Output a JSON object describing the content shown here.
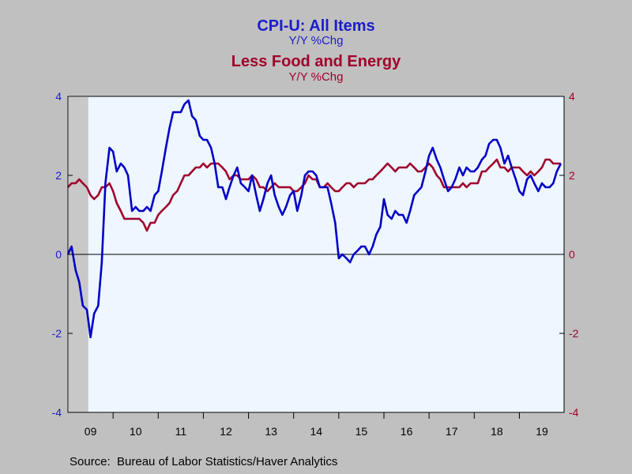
{
  "chart_data": {
    "type": "line",
    "title_1": "CPI-U: All Items",
    "subtitle_1": "Y/Y %Chg",
    "title_2": "Less Food and Energy",
    "subtitle_2": "Y/Y %Chg",
    "x_tick_labels": [
      "09",
      "10",
      "11",
      "12",
      "13",
      "14",
      "15",
      "16",
      "17",
      "18",
      "19"
    ],
    "x_range": [
      2009.0,
      2019.99
    ],
    "ylim_left": [
      -4,
      4
    ],
    "ylim_right": [
      -4,
      4
    ],
    "y_ticks_left": [
      "4",
      "2",
      "0",
      "-2",
      "-4"
    ],
    "y_ticks_right": [
      "4",
      "2",
      "0",
      "-2",
      "-4"
    ],
    "recession_shading": [
      2009.0,
      2009.45
    ],
    "colors": {
      "all_items": "#0000c8",
      "core": "#a0002a",
      "axis_left_text": "#1c1ccc",
      "axis_right_text": "#a0002a",
      "plot_bg": "#eef6ff",
      "recession": "#c8c8c8"
    },
    "series": [
      {
        "name": "CPI-U: All Items",
        "values": [
          [
            2009.0,
            0.0
          ],
          [
            2009.08,
            0.2
          ],
          [
            2009.17,
            -0.4
          ],
          [
            2009.25,
            -0.7
          ],
          [
            2009.33,
            -1.3
          ],
          [
            2009.42,
            -1.4
          ],
          [
            2009.5,
            -2.1
          ],
          [
            2009.58,
            -1.5
          ],
          [
            2009.67,
            -1.3
          ],
          [
            2009.75,
            -0.2
          ],
          [
            2009.83,
            1.8
          ],
          [
            2009.92,
            2.7
          ],
          [
            2010.0,
            2.6
          ],
          [
            2010.08,
            2.1
          ],
          [
            2010.17,
            2.3
          ],
          [
            2010.25,
            2.2
          ],
          [
            2010.33,
            2.0
          ],
          [
            2010.42,
            1.1
          ],
          [
            2010.5,
            1.2
          ],
          [
            2010.58,
            1.1
          ],
          [
            2010.67,
            1.1
          ],
          [
            2010.75,
            1.2
          ],
          [
            2010.83,
            1.1
          ],
          [
            2010.92,
            1.5
          ],
          [
            2011.0,
            1.6
          ],
          [
            2011.08,
            2.1
          ],
          [
            2011.17,
            2.7
          ],
          [
            2011.25,
            3.2
          ],
          [
            2011.33,
            3.6
          ],
          [
            2011.42,
            3.6
          ],
          [
            2011.5,
            3.6
          ],
          [
            2011.58,
            3.8
          ],
          [
            2011.67,
            3.9
          ],
          [
            2011.75,
            3.5
          ],
          [
            2011.83,
            3.4
          ],
          [
            2011.92,
            3.0
          ],
          [
            2012.0,
            2.9
          ],
          [
            2012.08,
            2.9
          ],
          [
            2012.17,
            2.7
          ],
          [
            2012.25,
            2.3
          ],
          [
            2012.33,
            1.7
          ],
          [
            2012.42,
            1.7
          ],
          [
            2012.5,
            1.4
          ],
          [
            2012.58,
            1.7
          ],
          [
            2012.67,
            2.0
          ],
          [
            2012.75,
            2.2
          ],
          [
            2012.83,
            1.8
          ],
          [
            2012.92,
            1.7
          ],
          [
            2013.0,
            1.6
          ],
          [
            2013.08,
            2.0
          ],
          [
            2013.17,
            1.5
          ],
          [
            2013.25,
            1.1
          ],
          [
            2013.33,
            1.4
          ],
          [
            2013.42,
            1.8
          ],
          [
            2013.5,
            2.0
          ],
          [
            2013.58,
            1.5
          ],
          [
            2013.67,
            1.2
          ],
          [
            2013.75,
            1.0
          ],
          [
            2013.83,
            1.2
          ],
          [
            2013.92,
            1.5
          ],
          [
            2014.0,
            1.6
          ],
          [
            2014.08,
            1.1
          ],
          [
            2014.17,
            1.5
          ],
          [
            2014.25,
            2.0
          ],
          [
            2014.33,
            2.1
          ],
          [
            2014.42,
            2.1
          ],
          [
            2014.5,
            2.0
          ],
          [
            2014.58,
            1.7
          ],
          [
            2014.67,
            1.7
          ],
          [
            2014.75,
            1.7
          ],
          [
            2014.83,
            1.3
          ],
          [
            2014.92,
            0.8
          ],
          [
            2015.0,
            -0.1
          ],
          [
            2015.08,
            0.0
          ],
          [
            2015.17,
            -0.1
          ],
          [
            2015.25,
            -0.2
          ],
          [
            2015.33,
            0.0
          ],
          [
            2015.42,
            0.1
          ],
          [
            2015.5,
            0.2
          ],
          [
            2015.58,
            0.2
          ],
          [
            2015.67,
            0.0
          ],
          [
            2015.75,
            0.2
          ],
          [
            2015.83,
            0.5
          ],
          [
            2015.92,
            0.7
          ],
          [
            2016.0,
            1.4
          ],
          [
            2016.08,
            1.0
          ],
          [
            2016.17,
            0.9
          ],
          [
            2016.25,
            1.1
          ],
          [
            2016.33,
            1.0
          ],
          [
            2016.42,
            1.0
          ],
          [
            2016.5,
            0.8
          ],
          [
            2016.58,
            1.1
          ],
          [
            2016.67,
            1.5
          ],
          [
            2016.75,
            1.6
          ],
          [
            2016.83,
            1.7
          ],
          [
            2016.92,
            2.1
          ],
          [
            2017.0,
            2.5
          ],
          [
            2017.08,
            2.7
          ],
          [
            2017.17,
            2.4
          ],
          [
            2017.25,
            2.2
          ],
          [
            2017.33,
            1.9
          ],
          [
            2017.42,
            1.6
          ],
          [
            2017.5,
            1.7
          ],
          [
            2017.58,
            1.9
          ],
          [
            2017.67,
            2.2
          ],
          [
            2017.75,
            2.0
          ],
          [
            2017.83,
            2.2
          ],
          [
            2017.92,
            2.1
          ],
          [
            2018.0,
            2.1
          ],
          [
            2018.08,
            2.2
          ],
          [
            2018.17,
            2.4
          ],
          [
            2018.25,
            2.5
          ],
          [
            2018.33,
            2.8
          ],
          [
            2018.42,
            2.9
          ],
          [
            2018.5,
            2.9
          ],
          [
            2018.58,
            2.7
          ],
          [
            2018.67,
            2.3
          ],
          [
            2018.75,
            2.5
          ],
          [
            2018.83,
            2.2
          ],
          [
            2018.92,
            1.9
          ],
          [
            2019.0,
            1.6
          ],
          [
            2019.08,
            1.5
          ],
          [
            2019.17,
            1.9
          ],
          [
            2019.25,
            2.0
          ],
          [
            2019.33,
            1.8
          ],
          [
            2019.42,
            1.6
          ],
          [
            2019.5,
            1.8
          ],
          [
            2019.58,
            1.7
          ],
          [
            2019.67,
            1.7
          ],
          [
            2019.75,
            1.8
          ],
          [
            2019.83,
            2.1
          ],
          [
            2019.92,
            2.3
          ]
        ]
      },
      {
        "name": "Less Food and Energy",
        "values": [
          [
            2009.0,
            1.7
          ],
          [
            2009.08,
            1.8
          ],
          [
            2009.17,
            1.8
          ],
          [
            2009.25,
            1.9
          ],
          [
            2009.33,
            1.8
          ],
          [
            2009.42,
            1.7
          ],
          [
            2009.5,
            1.5
          ],
          [
            2009.58,
            1.4
          ],
          [
            2009.67,
            1.5
          ],
          [
            2009.75,
            1.7
          ],
          [
            2009.83,
            1.7
          ],
          [
            2009.92,
            1.8
          ],
          [
            2010.0,
            1.6
          ],
          [
            2010.08,
            1.3
          ],
          [
            2010.17,
            1.1
          ],
          [
            2010.25,
            0.9
          ],
          [
            2010.33,
            0.9
          ],
          [
            2010.42,
            0.9
          ],
          [
            2010.5,
            0.9
          ],
          [
            2010.58,
            0.9
          ],
          [
            2010.67,
            0.8
          ],
          [
            2010.75,
            0.6
          ],
          [
            2010.83,
            0.8
          ],
          [
            2010.92,
            0.8
          ],
          [
            2011.0,
            1.0
          ],
          [
            2011.08,
            1.1
          ],
          [
            2011.17,
            1.2
          ],
          [
            2011.25,
            1.3
          ],
          [
            2011.33,
            1.5
          ],
          [
            2011.42,
            1.6
          ],
          [
            2011.5,
            1.8
          ],
          [
            2011.58,
            2.0
          ],
          [
            2011.67,
            2.0
          ],
          [
            2011.75,
            2.1
          ],
          [
            2011.83,
            2.2
          ],
          [
            2011.92,
            2.2
          ],
          [
            2012.0,
            2.3
          ],
          [
            2012.08,
            2.2
          ],
          [
            2012.17,
            2.3
          ],
          [
            2012.25,
            2.3
          ],
          [
            2012.33,
            2.3
          ],
          [
            2012.42,
            2.2
          ],
          [
            2012.5,
            2.1
          ],
          [
            2012.58,
            1.9
          ],
          [
            2012.67,
            2.0
          ],
          [
            2012.75,
            2.0
          ],
          [
            2012.83,
            1.9
          ],
          [
            2012.92,
            1.9
          ],
          [
            2013.0,
            1.9
          ],
          [
            2013.08,
            2.0
          ],
          [
            2013.17,
            1.9
          ],
          [
            2013.25,
            1.7
          ],
          [
            2013.33,
            1.7
          ],
          [
            2013.42,
            1.6
          ],
          [
            2013.5,
            1.7
          ],
          [
            2013.58,
            1.8
          ],
          [
            2013.67,
            1.7
          ],
          [
            2013.75,
            1.7
          ],
          [
            2013.83,
            1.7
          ],
          [
            2013.92,
            1.7
          ],
          [
            2014.0,
            1.6
          ],
          [
            2014.08,
            1.6
          ],
          [
            2014.17,
            1.7
          ],
          [
            2014.25,
            1.8
          ],
          [
            2014.33,
            2.0
          ],
          [
            2014.42,
            1.9
          ],
          [
            2014.5,
            1.9
          ],
          [
            2014.58,
            1.7
          ],
          [
            2014.67,
            1.7
          ],
          [
            2014.75,
            1.8
          ],
          [
            2014.83,
            1.7
          ],
          [
            2014.92,
            1.6
          ],
          [
            2015.0,
            1.6
          ],
          [
            2015.08,
            1.7
          ],
          [
            2015.17,
            1.8
          ],
          [
            2015.25,
            1.8
          ],
          [
            2015.33,
            1.7
          ],
          [
            2015.42,
            1.8
          ],
          [
            2015.5,
            1.8
          ],
          [
            2015.58,
            1.8
          ],
          [
            2015.67,
            1.9
          ],
          [
            2015.75,
            1.9
          ],
          [
            2015.83,
            2.0
          ],
          [
            2015.92,
            2.1
          ],
          [
            2016.0,
            2.2
          ],
          [
            2016.08,
            2.3
          ],
          [
            2016.17,
            2.2
          ],
          [
            2016.25,
            2.1
          ],
          [
            2016.33,
            2.2
          ],
          [
            2016.42,
            2.2
          ],
          [
            2016.5,
            2.2
          ],
          [
            2016.58,
            2.3
          ],
          [
            2016.67,
            2.2
          ],
          [
            2016.75,
            2.1
          ],
          [
            2016.83,
            2.1
          ],
          [
            2016.92,
            2.2
          ],
          [
            2017.0,
            2.3
          ],
          [
            2017.08,
            2.2
          ],
          [
            2017.17,
            2.0
          ],
          [
            2017.25,
            1.9
          ],
          [
            2017.33,
            1.7
          ],
          [
            2017.42,
            1.7
          ],
          [
            2017.5,
            1.7
          ],
          [
            2017.58,
            1.7
          ],
          [
            2017.67,
            1.7
          ],
          [
            2017.75,
            1.8
          ],
          [
            2017.83,
            1.7
          ],
          [
            2017.92,
            1.8
          ],
          [
            2018.0,
            1.8
          ],
          [
            2018.08,
            1.8
          ],
          [
            2018.17,
            2.1
          ],
          [
            2018.25,
            2.1
          ],
          [
            2018.33,
            2.2
          ],
          [
            2018.42,
            2.3
          ],
          [
            2018.5,
            2.4
          ],
          [
            2018.58,
            2.2
          ],
          [
            2018.67,
            2.2
          ],
          [
            2018.75,
            2.1
          ],
          [
            2018.83,
            2.2
          ],
          [
            2018.92,
            2.2
          ],
          [
            2019.0,
            2.2
          ],
          [
            2019.08,
            2.1
          ],
          [
            2019.17,
            2.0
          ],
          [
            2019.25,
            2.1
          ],
          [
            2019.33,
            2.0
          ],
          [
            2019.42,
            2.1
          ],
          [
            2019.5,
            2.2
          ],
          [
            2019.58,
            2.4
          ],
          [
            2019.67,
            2.4
          ],
          [
            2019.75,
            2.3
          ],
          [
            2019.83,
            2.3
          ],
          [
            2019.92,
            2.3
          ]
        ]
      }
    ]
  },
  "source_text": "Source:  Bureau of Labor Statistics/Haver Analytics"
}
